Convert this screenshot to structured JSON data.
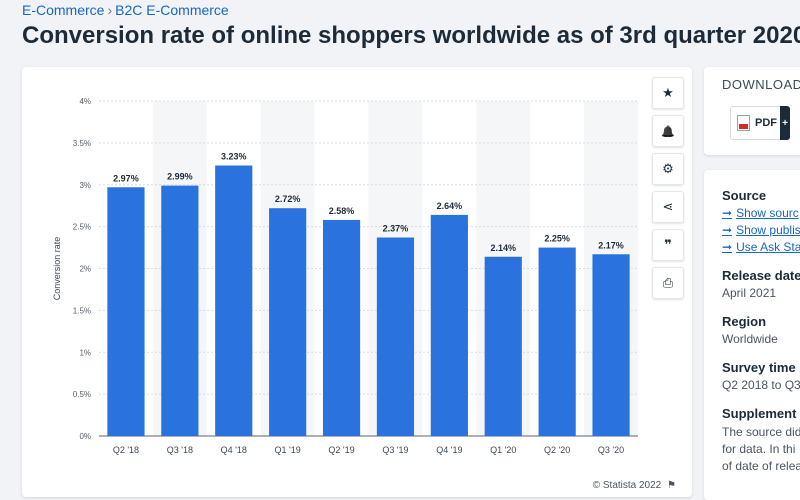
{
  "breadcrumb": {
    "items": [
      "E-Commerce",
      "B2C E-Commerce"
    ],
    "separator": "›"
  },
  "page_title": "Conversion rate of online shoppers worldwide as of 3rd quarter 2020",
  "chart_data": {
    "type": "bar",
    "title": "",
    "xlabel": "",
    "ylabel": "Conversion rate",
    "categories": [
      "Q2 '18",
      "Q3 '18",
      "Q4 '18",
      "Q1 '19",
      "Q2 '19",
      "Q3 '19",
      "Q4 '19",
      "Q1 '20",
      "Q2 '20",
      "Q3 '20"
    ],
    "values": [
      2.97,
      2.99,
      3.23,
      2.72,
      2.58,
      2.37,
      2.64,
      2.14,
      2.25,
      2.17
    ],
    "value_labels": [
      "2.97%",
      "2.99%",
      "3.23%",
      "2.72%",
      "2.58%",
      "2.37%",
      "2.64%",
      "2.14%",
      "2.25%",
      "2.17%"
    ],
    "ylim": [
      0,
      4
    ],
    "yticks": [
      0,
      0.5,
      1,
      1.5,
      2,
      2.5,
      3,
      3.5,
      4
    ],
    "ytick_labels": [
      "0%",
      "0.5%",
      "1%",
      "1.5%",
      "2%",
      "2.5%",
      "3%",
      "3.5%",
      "4%"
    ],
    "grid": true,
    "bar_color": "#2a73de",
    "band_color": "#f4f6f8"
  },
  "credit": "© Statista 2022",
  "tools": [
    {
      "name": "favorite-button",
      "icon": "star-icon",
      "glyph": "★"
    },
    {
      "name": "notification-button",
      "icon": "bell-icon",
      "glyph": "🔔"
    },
    {
      "name": "settings-button",
      "icon": "gear-icon",
      "glyph": "⚙"
    },
    {
      "name": "share-button",
      "icon": "share-icon",
      "glyph": "⋖"
    },
    {
      "name": "cite-button",
      "icon": "quote-icon",
      "glyph": "❞"
    },
    {
      "name": "print-button",
      "icon": "printer-icon",
      "glyph": "⎙"
    }
  ],
  "download": {
    "heading": "DOWNLOAD",
    "pdf_label": "PDF",
    "plus": "+"
  },
  "info": {
    "source_label": "Source",
    "source_links": [
      "Show sourc",
      "Show publis",
      "Use Ask Sta"
    ],
    "release_label": "Release date",
    "release_value": "April 2021",
    "region_label": "Region",
    "region_value": "Worldwide",
    "survey_label": "Survey time",
    "survey_value": "Q2 2018 to Q3",
    "supplement_label": "Supplement",
    "supplement_lines": [
      "The source did",
      "for data. In thi",
      "of date of relea"
    ]
  }
}
